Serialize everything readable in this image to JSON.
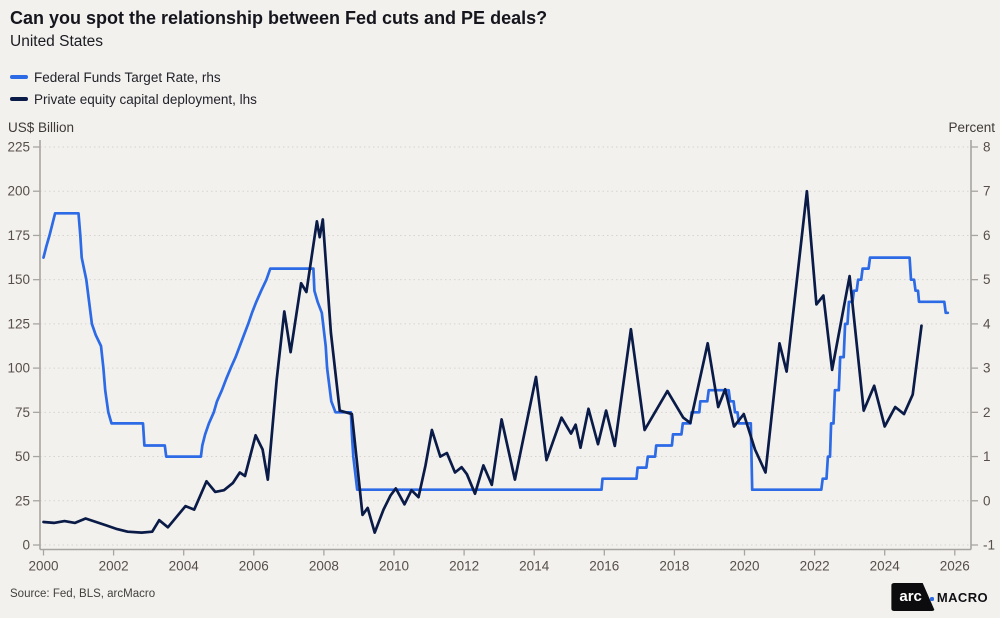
{
  "header": {
    "title": "Can you spot the relationship between Fed cuts and PE deals?",
    "subtitle": "United States"
  },
  "legend": [
    {
      "label": "Federal Funds Target Rate, rhs",
      "color": "#2c6ae6"
    },
    {
      "label": "Private equity capital deployment, lhs",
      "color": "#0b1b47"
    }
  ],
  "footer": {
    "source": "Source: Fed, BLS, arcMacro",
    "logo": {
      "arc": "arc",
      "macro": "MACRO",
      "dot_color": "#2c6ae6"
    }
  },
  "chart_data": {
    "type": "line",
    "title": "Can you spot the relationship between Fed cuts and PE deals?",
    "subtitle": "United States",
    "grid": "horizontal-dotted",
    "legend_position": "top-left",
    "colors": {
      "background": "#f2f1ee",
      "gridline": "#d7d4d0",
      "spine": "#a8a5a1",
      "tick_text": "#584e49"
    },
    "left_axis": {
      "label": "US$ Billion",
      "min": 0,
      "max": 225,
      "tick_step": 25
    },
    "right_axis": {
      "label": "Percent",
      "min": -1,
      "max": 8,
      "tick_step": 1
    },
    "x_axis": {
      "min": 2000,
      "max": 2026.45,
      "ticks": [
        2000,
        2002,
        2004,
        2006,
        2008,
        2010,
        2012,
        2014,
        2016,
        2018,
        2020,
        2022,
        2024,
        2026
      ]
    },
    "series": [
      {
        "name": "Federal Funds Target Rate, rhs",
        "axis": "right",
        "unit": "percent",
        "color": "#2c6ae6",
        "points": [
          [
            2000.0,
            5.5
          ],
          [
            2000.08,
            5.75
          ],
          [
            2000.17,
            6.0
          ],
          [
            2000.33,
            6.5
          ],
          [
            2001.0,
            6.5
          ],
          [
            2001.05,
            6.0
          ],
          [
            2001.09,
            5.5
          ],
          [
            2001.22,
            5.0
          ],
          [
            2001.3,
            4.5
          ],
          [
            2001.38,
            4.0
          ],
          [
            2001.49,
            3.75
          ],
          [
            2001.64,
            3.5
          ],
          [
            2001.71,
            3.0
          ],
          [
            2001.76,
            2.5
          ],
          [
            2001.85,
            2.0
          ],
          [
            2001.94,
            1.75
          ],
          [
            2002.84,
            1.75
          ],
          [
            2002.88,
            1.25
          ],
          [
            2003.46,
            1.25
          ],
          [
            2003.5,
            1.0
          ],
          [
            2004.49,
            1.0
          ],
          [
            2004.53,
            1.25
          ],
          [
            2004.61,
            1.5
          ],
          [
            2004.72,
            1.75
          ],
          [
            2004.86,
            2.0
          ],
          [
            2004.95,
            2.25
          ],
          [
            2005.09,
            2.5
          ],
          [
            2005.21,
            2.75
          ],
          [
            2005.34,
            3.0
          ],
          [
            2005.48,
            3.25
          ],
          [
            2005.6,
            3.5
          ],
          [
            2005.72,
            3.75
          ],
          [
            2005.84,
            4.0
          ],
          [
            2005.95,
            4.25
          ],
          [
            2006.07,
            4.5
          ],
          [
            2006.21,
            4.75
          ],
          [
            2006.36,
            5.0
          ],
          [
            2006.47,
            5.25
          ],
          [
            2007.7,
            5.25
          ],
          [
            2007.73,
            4.75
          ],
          [
            2007.82,
            4.5
          ],
          [
            2007.94,
            4.25
          ],
          [
            2008.05,
            3.5
          ],
          [
            2008.09,
            3.0
          ],
          [
            2008.21,
            2.25
          ],
          [
            2008.33,
            2.0
          ],
          [
            2008.77,
            2.0
          ],
          [
            2008.8,
            1.5
          ],
          [
            2008.84,
            1.0
          ],
          [
            2008.95,
            0.25
          ],
          [
            2015.92,
            0.25
          ],
          [
            2015.95,
            0.5
          ],
          [
            2016.92,
            0.5
          ],
          [
            2016.95,
            0.75
          ],
          [
            2017.2,
            0.75
          ],
          [
            2017.24,
            1.0
          ],
          [
            2017.45,
            1.0
          ],
          [
            2017.48,
            1.25
          ],
          [
            2017.93,
            1.25
          ],
          [
            2017.96,
            1.5
          ],
          [
            2018.2,
            1.5
          ],
          [
            2018.24,
            1.75
          ],
          [
            2018.46,
            1.75
          ],
          [
            2018.49,
            2.0
          ],
          [
            2018.71,
            2.0
          ],
          [
            2018.74,
            2.25
          ],
          [
            2018.94,
            2.25
          ],
          [
            2018.98,
            2.5
          ],
          [
            2019.55,
            2.5
          ],
          [
            2019.59,
            2.25
          ],
          [
            2019.69,
            2.25
          ],
          [
            2019.73,
            2.0
          ],
          [
            2019.8,
            2.0
          ],
          [
            2019.84,
            1.75
          ],
          [
            2020.18,
            1.75
          ],
          [
            2020.22,
            0.25
          ],
          [
            2022.19,
            0.25
          ],
          [
            2022.23,
            0.5
          ],
          [
            2022.34,
            0.5
          ],
          [
            2022.38,
            1.0
          ],
          [
            2022.44,
            1.0
          ],
          [
            2022.47,
            1.75
          ],
          [
            2022.54,
            1.75
          ],
          [
            2022.58,
            2.5
          ],
          [
            2022.69,
            2.5
          ],
          [
            2022.73,
            3.25
          ],
          [
            2022.83,
            3.25
          ],
          [
            2022.87,
            4.0
          ],
          [
            2022.94,
            4.0
          ],
          [
            2022.98,
            4.5
          ],
          [
            2023.08,
            4.5
          ],
          [
            2023.12,
            4.75
          ],
          [
            2023.2,
            4.75
          ],
          [
            2023.24,
            5.0
          ],
          [
            2023.33,
            5.0
          ],
          [
            2023.37,
            5.25
          ],
          [
            2023.54,
            5.25
          ],
          [
            2023.58,
            5.5
          ],
          [
            2024.71,
            5.5
          ],
          [
            2024.75,
            5.0
          ],
          [
            2024.84,
            5.0
          ],
          [
            2024.88,
            4.75
          ],
          [
            2024.95,
            4.75
          ],
          [
            2024.98,
            4.5
          ],
          [
            2025.7,
            4.5
          ],
          [
            2025.74,
            4.25
          ],
          [
            2025.8,
            4.25
          ]
        ]
      },
      {
        "name": "Private equity capital deployment, lhs",
        "axis": "left",
        "unit": "US$ Billion",
        "color": "#0b1b47",
        "points": [
          [
            2000.0,
            13
          ],
          [
            2000.3,
            12.5
          ],
          [
            2000.6,
            13.5
          ],
          [
            2000.9,
            12.5
          ],
          [
            2001.2,
            15
          ],
          [
            2001.5,
            13
          ],
          [
            2001.8,
            11
          ],
          [
            2002.1,
            9
          ],
          [
            2002.4,
            7.5
          ],
          [
            2002.8,
            7
          ],
          [
            2003.1,
            7.5
          ],
          [
            2003.3,
            14
          ],
          [
            2003.55,
            10
          ],
          [
            2003.8,
            16
          ],
          [
            2004.05,
            22
          ],
          [
            2004.3,
            20
          ],
          [
            2004.65,
            36
          ],
          [
            2004.9,
            30
          ],
          [
            2005.15,
            31
          ],
          [
            2005.4,
            35
          ],
          [
            2005.6,
            41
          ],
          [
            2005.75,
            39
          ],
          [
            2006.05,
            62
          ],
          [
            2006.25,
            54
          ],
          [
            2006.4,
            37
          ],
          [
            2006.65,
            93
          ],
          [
            2006.87,
            132
          ],
          [
            2007.05,
            109
          ],
          [
            2007.35,
            148
          ],
          [
            2007.5,
            143
          ],
          [
            2007.8,
            183
          ],
          [
            2007.88,
            174
          ],
          [
            2007.97,
            184
          ],
          [
            2008.2,
            120
          ],
          [
            2008.45,
            76
          ],
          [
            2008.8,
            74
          ],
          [
            2009.1,
            17
          ],
          [
            2009.25,
            21
          ],
          [
            2009.45,
            7
          ],
          [
            2009.7,
            20
          ],
          [
            2009.9,
            28
          ],
          [
            2010.05,
            32
          ],
          [
            2010.3,
            23
          ],
          [
            2010.5,
            31
          ],
          [
            2010.7,
            27
          ],
          [
            2010.9,
            45
          ],
          [
            2011.08,
            65
          ],
          [
            2011.32,
            50
          ],
          [
            2011.51,
            52
          ],
          [
            2011.74,
            41
          ],
          [
            2011.93,
            44
          ],
          [
            2012.08,
            40
          ],
          [
            2012.31,
            29
          ],
          [
            2012.55,
            45
          ],
          [
            2012.79,
            34
          ],
          [
            2013.07,
            71
          ],
          [
            2013.45,
            37
          ],
          [
            2014.05,
            95
          ],
          [
            2014.35,
            48
          ],
          [
            2014.78,
            72
          ],
          [
            2015.05,
            63
          ],
          [
            2015.18,
            68
          ],
          [
            2015.32,
            55
          ],
          [
            2015.55,
            77
          ],
          [
            2015.82,
            57
          ],
          [
            2016.05,
            76
          ],
          [
            2016.3,
            56
          ],
          [
            2016.76,
            122
          ],
          [
            2017.15,
            65
          ],
          [
            2017.8,
            87
          ],
          [
            2018.25,
            72
          ],
          [
            2018.45,
            69
          ],
          [
            2018.95,
            114
          ],
          [
            2019.25,
            78
          ],
          [
            2019.45,
            88
          ],
          [
            2019.7,
            67
          ],
          [
            2019.98,
            74
          ],
          [
            2020.3,
            54
          ],
          [
            2020.6,
            41
          ],
          [
            2021.0,
            114
          ],
          [
            2021.2,
            98
          ],
          [
            2021.78,
            200
          ],
          [
            2022.05,
            136
          ],
          [
            2022.25,
            141
          ],
          [
            2022.5,
            99
          ],
          [
            2023.0,
            152
          ],
          [
            2023.4,
            76
          ],
          [
            2023.7,
            90
          ],
          [
            2024.0,
            67
          ],
          [
            2024.3,
            78
          ],
          [
            2024.55,
            74
          ],
          [
            2024.8,
            85
          ],
          [
            2025.05,
            124
          ]
        ]
      }
    ]
  }
}
